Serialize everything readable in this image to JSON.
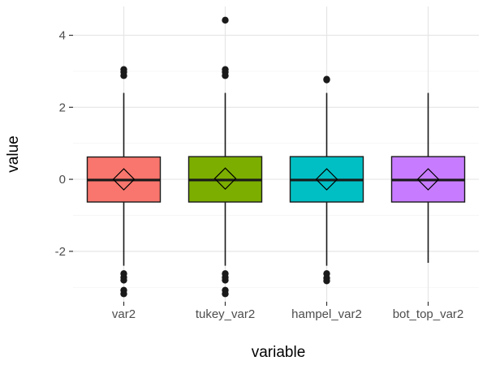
{
  "chart_data": {
    "type": "box",
    "xlabel": "variable",
    "ylabel": "value",
    "ylim": [
      -3.4,
      4.8
    ],
    "yticks": [
      -2,
      0,
      2,
      4
    ],
    "ytick_labels": [
      "-2",
      "0",
      "2",
      "4"
    ],
    "categories": [
      "var2",
      "tukey_var2",
      "hampel_var2",
      "bot_top_var2"
    ],
    "boxes": [
      {
        "category": "var2",
        "q1": -0.63,
        "median": -0.02,
        "q3": 0.62,
        "whisker_low": -2.4,
        "whisker_high": 2.4,
        "mean": 0.0,
        "color": "#F8766D",
        "outliers": [
          2.88,
          2.98,
          3.05,
          -2.62,
          -2.72,
          -2.8,
          -3.08,
          -3.18
        ]
      },
      {
        "category": "tukey_var2",
        "q1": -0.63,
        "median": -0.02,
        "q3": 0.63,
        "whisker_low": -2.4,
        "whisker_high": 2.4,
        "mean": 0.02,
        "color": "#7CAE00",
        "outliers": [
          4.42,
          2.88,
          2.98,
          3.05,
          -2.62,
          -2.72,
          -2.8,
          -3.08,
          -3.18
        ]
      },
      {
        "category": "hampel_var2",
        "q1": -0.63,
        "median": -0.02,
        "q3": 0.63,
        "whisker_low": -2.4,
        "whisker_high": 2.4,
        "mean": 0.0,
        "color": "#00BFC4",
        "outliers": [
          2.78,
          2.76,
          -2.62,
          -2.74,
          -2.82
        ]
      },
      {
        "category": "bot_top_var2",
        "q1": -0.63,
        "median": -0.02,
        "q3": 0.63,
        "whisker_low": -2.32,
        "whisker_high": 2.4,
        "mean": 0.0,
        "color": "#C77CFF",
        "outliers": []
      }
    ],
    "grid": true,
    "legend": "none",
    "mean_marker": "diamond"
  }
}
